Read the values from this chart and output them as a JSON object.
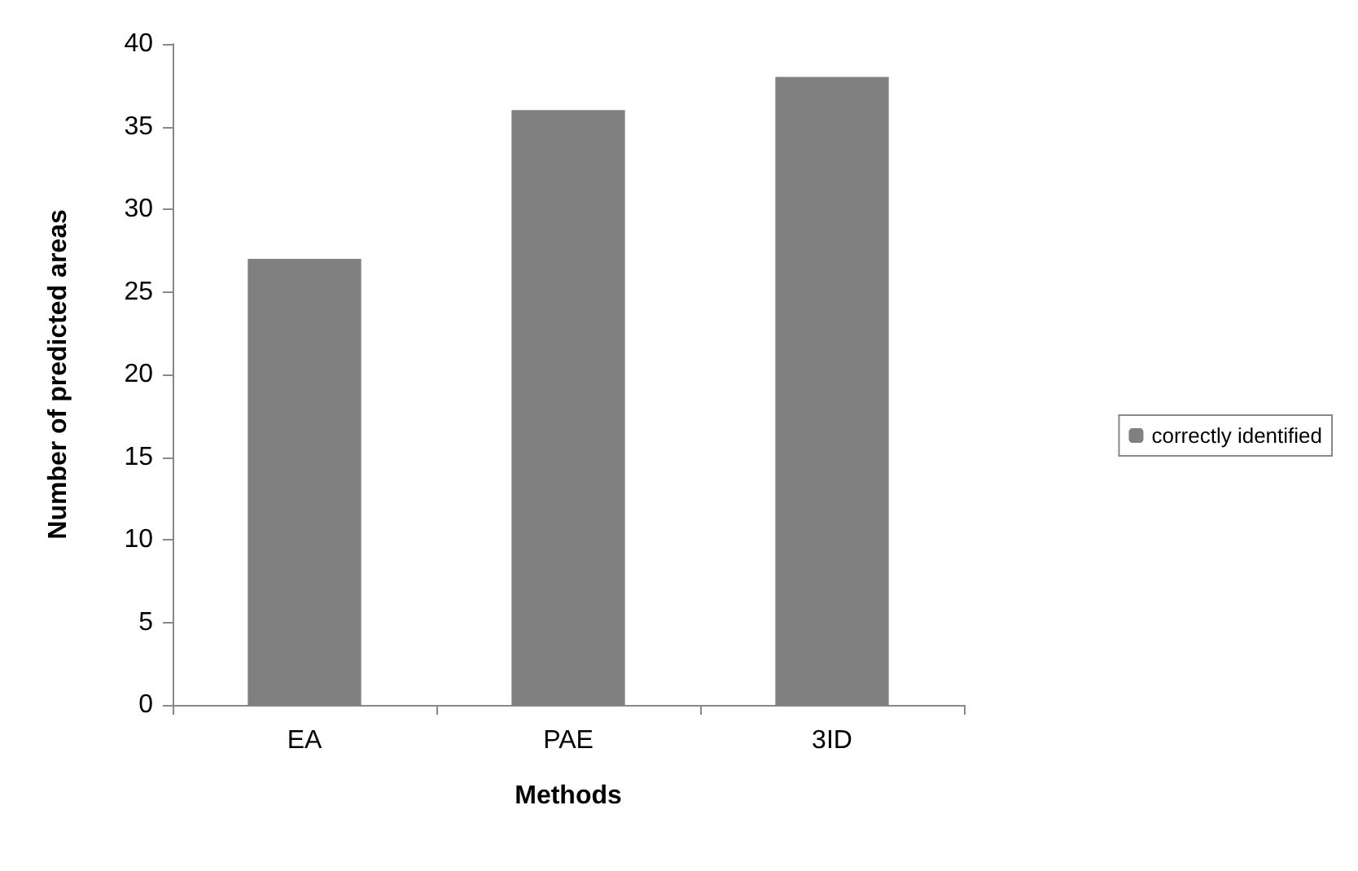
{
  "chart_data": {
    "type": "bar",
    "xlabel": "Methods",
    "ylabel": "Number of predicted areas",
    "categories": [
      "EA",
      "PAE",
      "3ID"
    ],
    "series": [
      {
        "name": "correctly identified",
        "color": "#808080",
        "values": [
          27,
          36,
          38
        ]
      }
    ],
    "ylim": [
      0,
      40
    ],
    "yticks": [
      0,
      5,
      10,
      15,
      20,
      25,
      30,
      35,
      40
    ],
    "grid": false,
    "legend": "right"
  }
}
